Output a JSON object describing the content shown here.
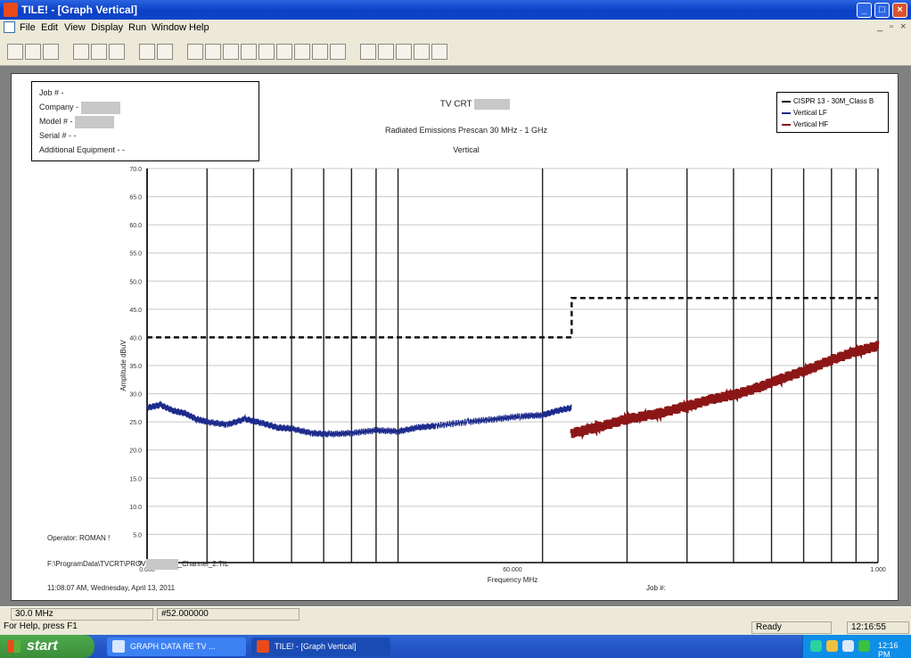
{
  "window": {
    "title": "TILE! - [Graph Vertical]"
  },
  "menu": {
    "items": [
      "File",
      "Edit",
      "View",
      "Display",
      "Run",
      "Window",
      "Help"
    ]
  },
  "toolbar": {
    "buttons": [
      "new-icon",
      "open-icon",
      "save-icon",
      "cut-icon",
      "copy-icon",
      "paste-icon",
      "print-icon",
      "help-icon",
      "step-icon",
      "graph-icon",
      "table-icon",
      "chart-icon",
      "marker-icon",
      "frame-icon",
      "edit-icon",
      "zoom-in-icon",
      "zoom-out-icon",
      "down-arrow-icon",
      "peak-icon",
      "list-icon",
      "record-icon",
      "back-icon"
    ]
  },
  "report": {
    "info": {
      "job": "Job # -",
      "company": "Company -",
      "model": "Model # -",
      "serial": "Serial # - -",
      "additional": "Additional Equipment - -"
    },
    "header_title": "TV CRT",
    "header_subtitle": "Radiated Emissions Prescan 30 MHz - 1 GHz",
    "header_polarity": "Vertical",
    "legend": [
      "CISPR 13 - 30M_Class B",
      "Vertical LF",
      "Vertical HF"
    ],
    "operator": "Operator: ROMAN !",
    "file_path": "F:\\ProgramData\\TVCRT\\PROV",
    "file_suffix": "_Channel_2.TIL",
    "datetime": "11:08:07 AM, Wednesday, April 13, 2011",
    "job_footer": "Job #:"
  },
  "chart_data": {
    "type": "line",
    "xscale": "log",
    "xlim": [
      30,
      1000
    ],
    "xticks": [
      "0.000",
      "60.000",
      "1.000"
    ],
    "yticks": [
      "0",
      "5.0",
      "10.0",
      "15.0",
      "20.0",
      "25.0",
      "30.0",
      "35.0",
      "40.0",
      "45.0",
      "50.0",
      "55.0",
      "60.0",
      "65.0",
      "70.0"
    ],
    "ylim": [
      0,
      70
    ],
    "xlabel": "Frequency MHz",
    "ylabel": "Amplitude dBuV",
    "limit_line": [
      [
        30,
        40
      ],
      [
        230,
        40
      ],
      [
        230,
        47
      ],
      [
        1000,
        47
      ]
    ],
    "series": [
      {
        "name": "Vertical LF",
        "color": "#1c2a8c",
        "x": [
          30,
          32,
          34,
          36,
          38,
          40,
          44,
          48,
          52,
          56,
          60,
          66,
          72,
          80,
          90,
          100,
          110,
          120,
          140,
          160,
          180,
          200,
          215,
          230
        ],
        "y": [
          27.5,
          28,
          27,
          26.5,
          25.5,
          25,
          24.5,
          25.5,
          24.8,
          24,
          23.8,
          23,
          22.8,
          23,
          23.5,
          23.3,
          24,
          24.3,
          25,
          25.5,
          26,
          26.2,
          27,
          27.5
        ]
      },
      {
        "name": "Vertical HF",
        "color": "#8c1616",
        "x": [
          230,
          260,
          300,
          350,
          400,
          450,
          500,
          560,
          620,
          700,
          800,
          900,
          1000
        ],
        "y": [
          23,
          24,
          25.5,
          26.5,
          27.8,
          29,
          29.8,
          31,
          32.5,
          34,
          36,
          37.5,
          38.5
        ]
      }
    ]
  },
  "status": {
    "freq": "30.0 MHz",
    "value": "#52.000000",
    "help": "For Help, press F1",
    "ready": "Ready",
    "time": "12:16:55"
  },
  "taskbar": {
    "start": "start",
    "tasks": [
      "GRAPH DATA RE TV ...",
      "TILE! - [Graph Vertical]"
    ],
    "clock": "12:16 PM"
  }
}
